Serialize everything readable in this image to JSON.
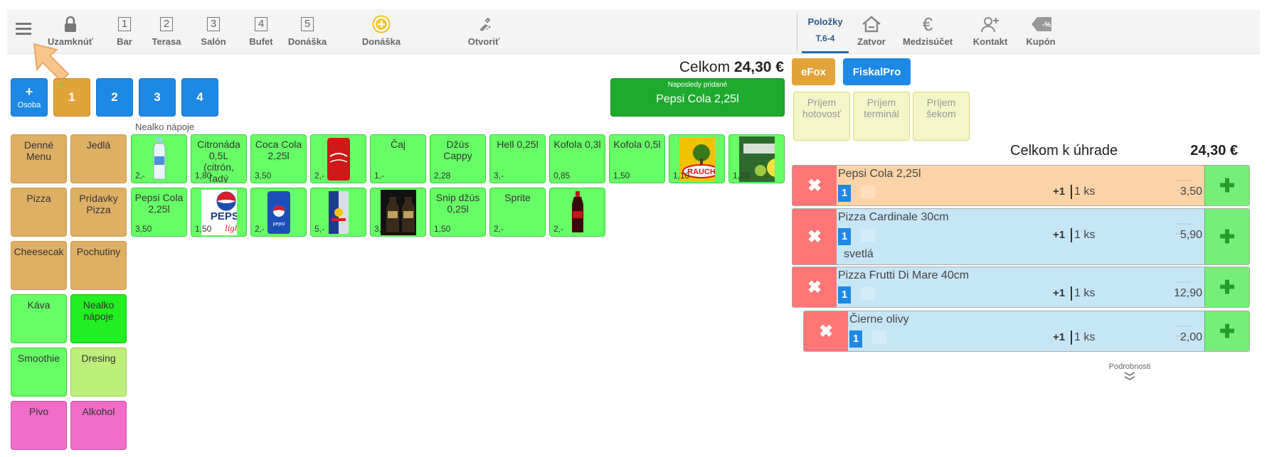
{
  "toolbar": {
    "lock": "Uzamknúť",
    "tables": [
      {
        "num": "1",
        "label": "Bar"
      },
      {
        "num": "2",
        "label": "Terasa"
      },
      {
        "num": "3",
        "label": "Salón"
      },
      {
        "num": "4",
        "label": "Bufet"
      },
      {
        "num": "5",
        "label": "Donáška"
      }
    ],
    "delivery_add": "Donáška",
    "open": "Otvoriť",
    "items_tab": "Položky",
    "items_tab_sub": "T.6-4",
    "close": "Zatvor",
    "subtotal": "Medzisúčet",
    "contact": "Kontakt",
    "coupon": "Kupón",
    "coupon_badge": "-%"
  },
  "persons": {
    "add_label": "Osoba",
    "add_plus": "+",
    "items": [
      "1",
      "2",
      "3",
      "4"
    ],
    "active_check": "✓"
  },
  "category_title": "Nealko nápoje",
  "total_top": {
    "label": "Celkom",
    "value": "24,30 €"
  },
  "last_added": {
    "caption": "Naposledy pridané",
    "item": "Pepsi Cola 2,25l"
  },
  "categories": [
    {
      "label": "Denné Menu",
      "color": "orange"
    },
    {
      "label": "Jedlá",
      "color": "orange"
    },
    {
      "label": "Pizza",
      "color": "orange"
    },
    {
      "label": "Prídavky Pizza",
      "color": "orange"
    },
    {
      "label": "Cheesecak",
      "color": "orange"
    },
    {
      "label": "Pochutiny",
      "color": "orange"
    },
    {
      "label": "Káva",
      "color": "green"
    },
    {
      "label": "Nealko nápoje",
      "color": "bright"
    },
    {
      "label": "Smoothie",
      "color": "green"
    },
    {
      "label": "Dresing",
      "color": "lime"
    },
    {
      "label": "Pivo",
      "color": "pink"
    },
    {
      "label": "Alkohol",
      "color": "pink"
    }
  ],
  "products_row1": [
    {
      "name": "",
      "price": "2,-",
      "image": "water-bottle"
    },
    {
      "name": "Citronáda 0,5L (citrón, ľadý",
      "price": "1,80",
      "image": ""
    },
    {
      "name": "Coca Cola 2,25l",
      "price": "3,50",
      "image": ""
    },
    {
      "name": "",
      "price": "2,-",
      "image": "coca-cola-can"
    },
    {
      "name": "Čaj",
      "price": "1,-",
      "image": ""
    },
    {
      "name": "Džús Cappy",
      "price": "2,28",
      "image": ""
    },
    {
      "name": "Hell 0,25l",
      "price": "3,-",
      "image": ""
    },
    {
      "name": "Kofola 0,3l",
      "price": "0,85",
      "image": ""
    },
    {
      "name": "Kofola 0,5l",
      "price": "1,50",
      "image": ""
    },
    {
      "name": "",
      "price": "1,10",
      "image": "rauch-logo"
    },
    {
      "name": "",
      "price": "1,20",
      "image": "radler-logo"
    }
  ],
  "products_row2": [
    {
      "name": "Pepsi Cola 2,25l",
      "price": "3,50",
      "image": ""
    },
    {
      "name": "",
      "price": "1,50",
      "image": "pepsi-light-logo"
    },
    {
      "name": "",
      "price": "2,-",
      "image": "pepsi-can"
    },
    {
      "name": "",
      "price": "5,-",
      "image": "red-bull-can"
    },
    {
      "name": "",
      "price": "3,-",
      "image": "dark-bottles"
    },
    {
      "name": "Snip džús 0,25l",
      "price": "1,50",
      "image": ""
    },
    {
      "name": "Sprite",
      "price": "2,-",
      "image": ""
    },
    {
      "name": "",
      "price": "2,-",
      "image": "kofola-bottle"
    }
  ],
  "logos": {
    "rauch": "RAUCH",
    "pepsi": "PEPSI",
    "light": "light",
    "pepsi_small": "pepsi"
  },
  "fiscal": {
    "efox": "eFox",
    "fiskalpro": "FiskalPro"
  },
  "payments": [
    "Príjem hotovosť",
    "Príjem terminál",
    "Príjem šekom"
  ],
  "total_due": {
    "label": "Celkom k úhrade",
    "value": "24,30 €"
  },
  "order": [
    {
      "name": "Pepsi Cola 2,25l",
      "badge": "1",
      "plus": "+1",
      "qty": "1 ks",
      "price": "3,50",
      "note": "",
      "color": "#fcd3a8"
    },
    {
      "name": "Pizza Cardinale 30cm",
      "badge": "1",
      "plus": "+1",
      "qty": "1 ks",
      "price": "5,90",
      "note": "svetlá",
      "color": "#c6e6f8"
    },
    {
      "name": "Pizza Frutti Di Mare 40cm",
      "badge": "1",
      "plus": "+1",
      "qty": "1 ks",
      "price": "12,90",
      "note": "",
      "color": "#c6e6f8"
    },
    {
      "name": "Čierne olivy",
      "badge": "1",
      "plus": "+1",
      "qty": "1 ks",
      "price": "2,00",
      "note": "",
      "color": "#c6e6f8"
    }
  ],
  "details": "Podrobnosti",
  "colors": {
    "blue": "#1e88e5",
    "green": "#1faa2e",
    "orange_btn": "#e2a33a",
    "red": "#ff7676"
  }
}
